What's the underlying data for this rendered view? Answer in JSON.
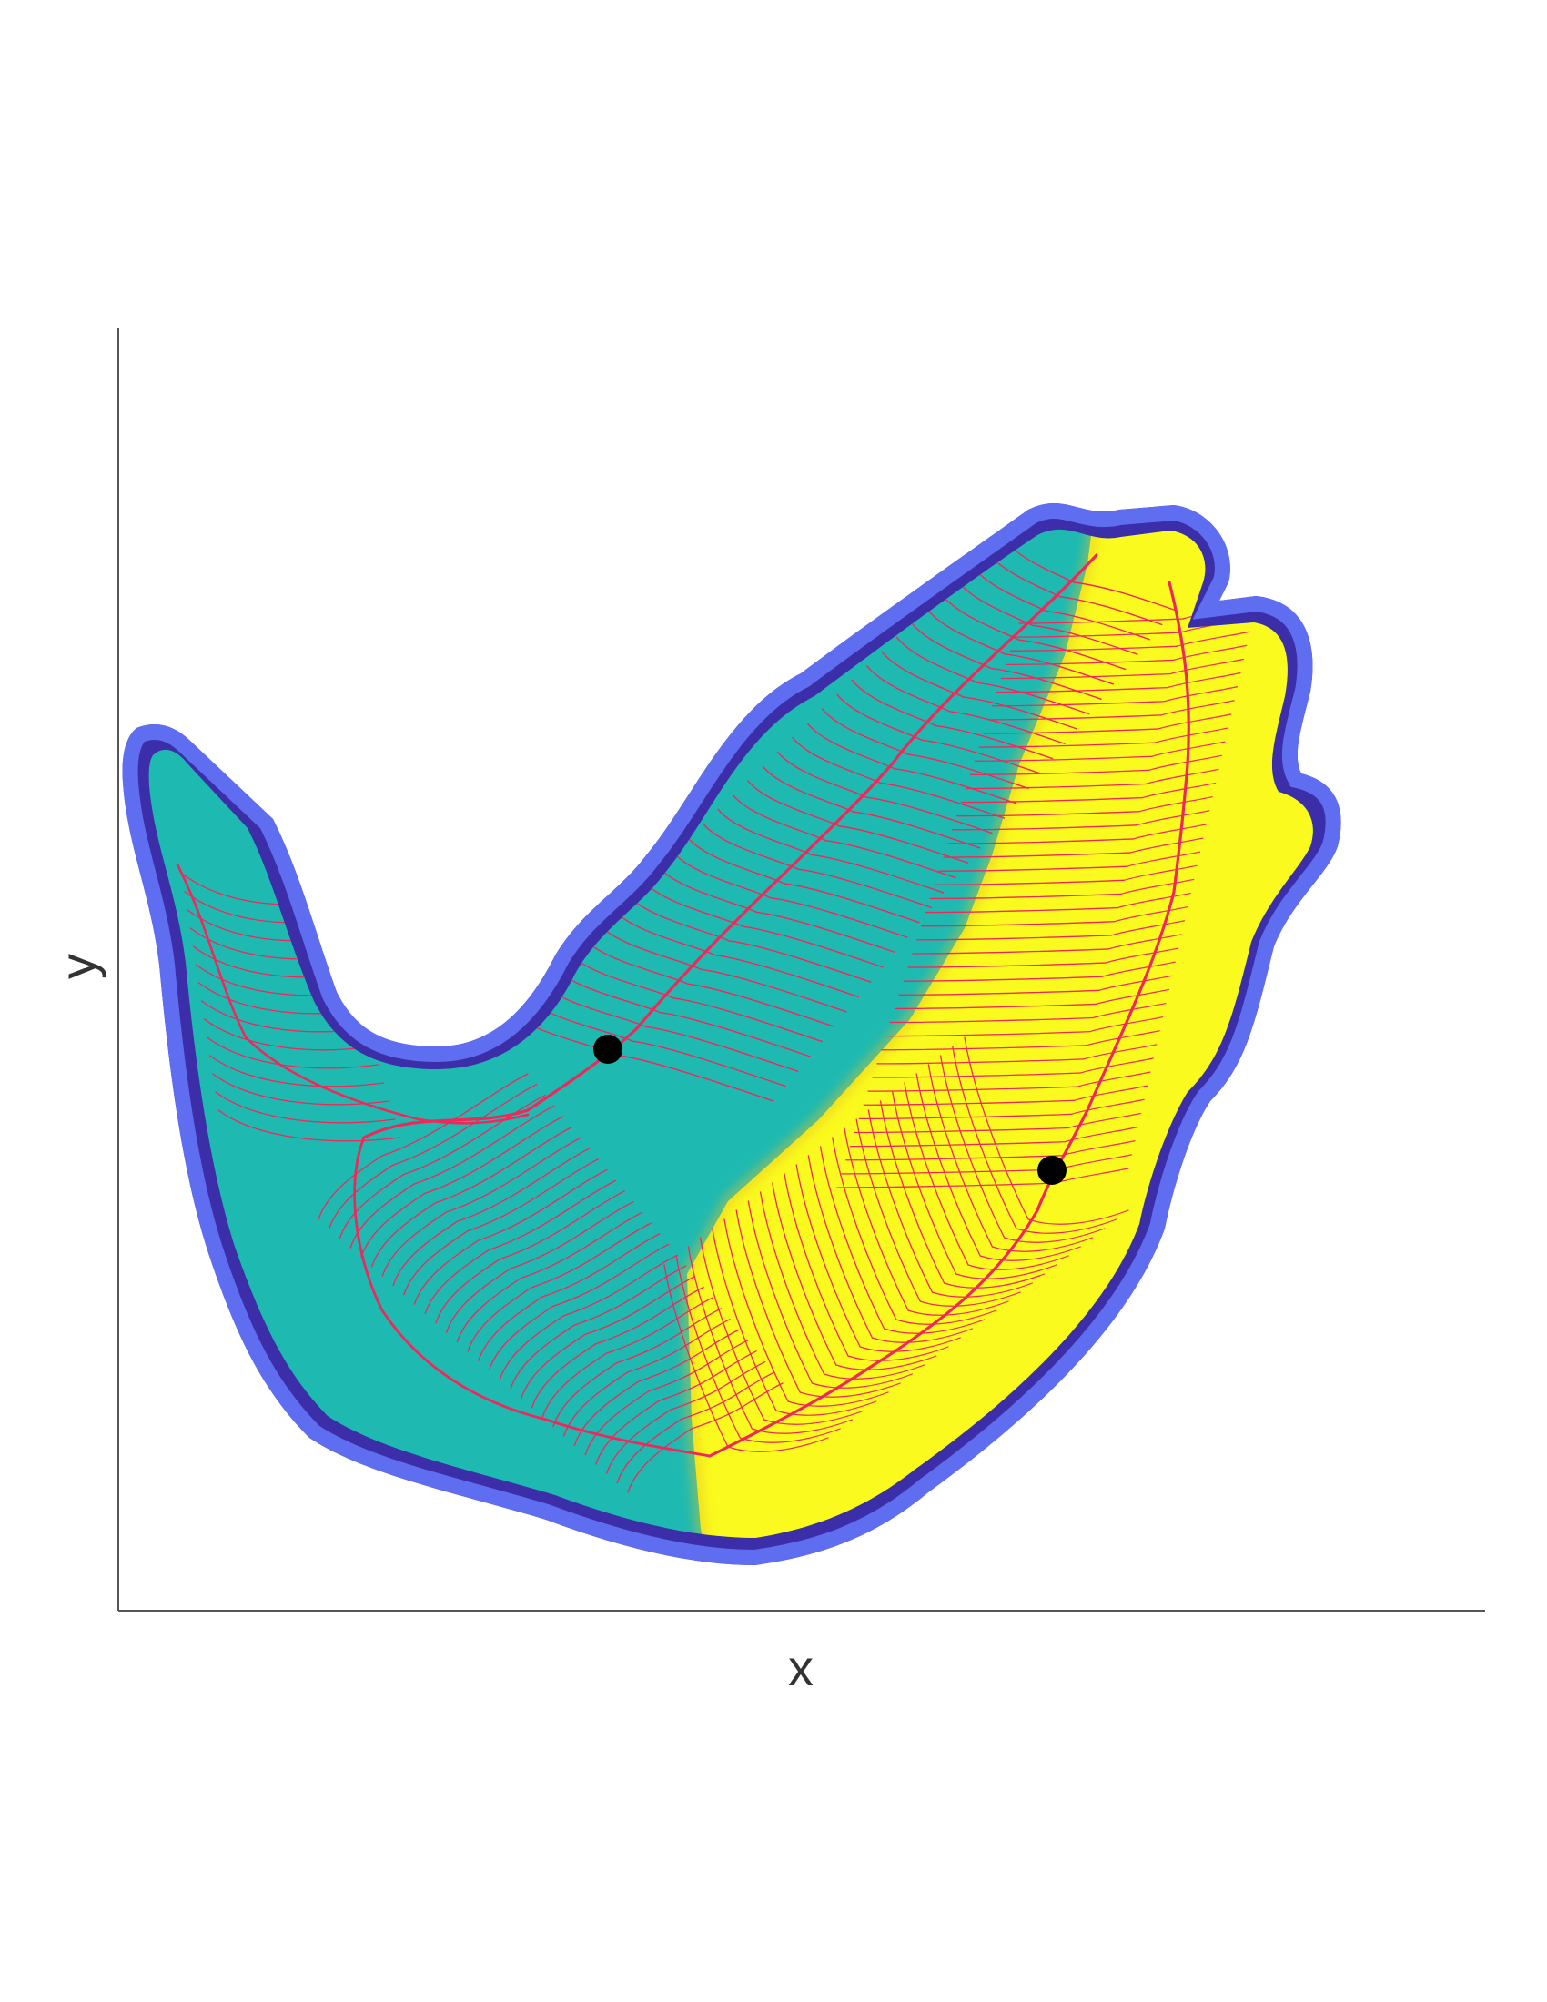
{
  "axes": {
    "xlabel": "x",
    "ylabel": "y"
  },
  "colors": {
    "boundary": "#3b2ea8",
    "boundary_inner": "#5f6ef0",
    "left_region": "#1ebab2",
    "right_region": "#fafa1e",
    "streamlines": "#f0285a",
    "markers": "#000000"
  },
  "diagram": {
    "regions": [
      "left-basin",
      "right-basin"
    ],
    "markers": [
      "marker-left",
      "marker-right"
    ]
  }
}
